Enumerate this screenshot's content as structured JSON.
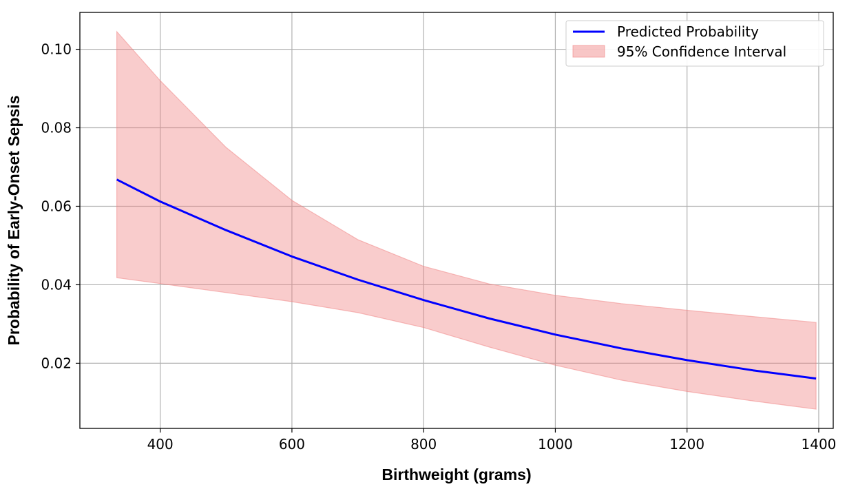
{
  "chart_data": {
    "type": "line",
    "title": "",
    "xlabel": "Birthweight (grams)",
    "ylabel": "Probability of Early-Onset Sepsis",
    "xlim": [
      278,
      1422
    ],
    "ylim": [
      0.0034,
      0.1094
    ],
    "xticks": [
      400,
      600,
      800,
      1000,
      1200,
      1400
    ],
    "yticks": [
      0.02,
      0.04,
      0.06,
      0.08,
      0.1
    ],
    "xtick_labels": [
      "400",
      "600",
      "800",
      "1000",
      "1200",
      "1400"
    ],
    "ytick_labels": [
      "0.02",
      "0.04",
      "0.06",
      "0.08",
      "0.10"
    ],
    "grid": true,
    "legend_position": "top-right",
    "series": [
      {
        "name": "Predicted Probability",
        "color": "#0000ff",
        "x": [
          334,
          400,
          500,
          600,
          700,
          800,
          900,
          1000,
          1100,
          1200,
          1300,
          1396
        ],
        "y": [
          0.0668,
          0.0612,
          0.0539,
          0.0472,
          0.0413,
          0.0361,
          0.0314,
          0.0273,
          0.0238,
          0.0208,
          0.0182,
          0.0161
        ]
      }
    ],
    "confidence_band": {
      "name": "95% Confidence Interval",
      "color": "#f08080",
      "x": [
        334,
        400,
        500,
        600,
        700,
        800,
        900,
        1000,
        1100,
        1200,
        1300,
        1396
      ],
      "upper": [
        0.1045,
        0.092,
        0.075,
        0.0615,
        0.0515,
        0.0447,
        0.0402,
        0.0373,
        0.0352,
        0.0335,
        0.0319,
        0.0304
      ],
      "lower": [
        0.0418,
        0.0403,
        0.038,
        0.0357,
        0.0329,
        0.0291,
        0.0241,
        0.0195,
        0.0157,
        0.0128,
        0.0104,
        0.0083
      ]
    }
  }
}
